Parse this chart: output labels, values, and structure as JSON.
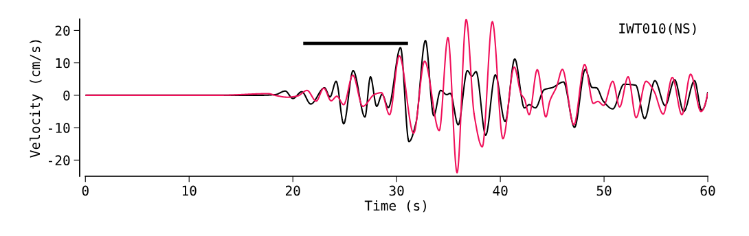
{
  "chart_data": {
    "type": "line",
    "xlabel": "Time (s)",
    "ylabel": "Velocity (cm/s)",
    "annotations": [
      "IWT010(NS)"
    ],
    "xlim": [
      0,
      60
    ],
    "xticks": [
      0,
      10,
      20,
      30,
      40,
      50,
      60
    ],
    "ylim": [
      -25,
      23.5
    ],
    "yticks": [
      -20,
      -10,
      0,
      10,
      20
    ],
    "grid": false,
    "legend": false,
    "series": [
      {
        "color": "#000000",
        "x": [
          0,
          13,
          17,
          18.3,
          19.27,
          20.0,
          20.86,
          21.72,
          23.05,
          23.58,
          24.17,
          24.9,
          25.81,
          26.95,
          27.48,
          28.08,
          28.6,
          29.2,
          30.38,
          31.19,
          31.85,
          32.78,
          33.58,
          34.24,
          34.83,
          35.17,
          35.94,
          36.82,
          37.26,
          37.66,
          38.59,
          39.52,
          40.46,
          41.39,
          42.32,
          42.78,
          43.38,
          44.22,
          45.03,
          46.09,
          47.15,
          48.19,
          48.85,
          49.27,
          49.93,
          50.84,
          51.92,
          53.05,
          53.91,
          54.9,
          55.89,
          56.8,
          57.68,
          58.72,
          59.4,
          60
        ],
        "values": [
          0,
          0,
          0,
          0.2,
          1.3,
          -1.0,
          1.1,
          -2.7,
          2.3,
          -0.5,
          4.3,
          -8.8,
          7.6,
          -6.7,
          5.7,
          -3.4,
          0.3,
          -3.8,
          14.7,
          -14.3,
          -8.8,
          16.9,
          -6.3,
          1.5,
          0.2,
          0.6,
          -9.1,
          7.6,
          5.9,
          7.3,
          -12.3,
          6.3,
          -8.1,
          11.2,
          -3.9,
          -2.9,
          -3.9,
          1.7,
          2.4,
          4.1,
          -9.9,
          8.0,
          2.4,
          2.3,
          -1.8,
          -4.2,
          3.4,
          3.1,
          -7.2,
          4.5,
          -3.2,
          4.8,
          -5.0,
          4.5,
          -4.6,
          1.0
        ]
      },
      {
        "color": "#f0105a",
        "x": [
          0,
          13,
          17.62,
          18.39,
          19.47,
          20.46,
          21.37,
          22.25,
          22.98,
          23.69,
          24.24,
          24.9,
          25.78,
          26.74,
          27.88,
          28.54,
          29.32,
          30.26,
          31.64,
          32.7,
          34.11,
          34.95,
          35.83,
          36.71,
          37.48,
          38.26,
          39.23,
          40.25,
          41.34,
          42.01,
          42.32,
          42.78,
          43.56,
          44.39,
          44.77,
          45.43,
          45.98,
          47.09,
          48.13,
          48.96,
          49.4,
          49.95,
          50.84,
          51.5,
          52.32,
          53.09,
          54.04,
          54.81,
          55.7,
          56.58,
          57.5,
          58.34,
          59.34,
          60
        ],
        "values": [
          0,
          0,
          0.5,
          -0.1,
          -0.6,
          -0.2,
          1.5,
          -1.8,
          2.2,
          -1.7,
          -0.3,
          -2.9,
          6.2,
          -3.4,
          0.3,
          0.8,
          -6.0,
          12.2,
          -11.7,
          10.5,
          -10.9,
          17.8,
          -23.9,
          23.4,
          -6.0,
          -15.9,
          22.7,
          -13.4,
          8.7,
          0.3,
          -1.1,
          -6.0,
          7.9,
          -6.7,
          -1.8,
          2.7,
          8.0,
          -9.1,
          9.5,
          -2.5,
          -1.9,
          -3.1,
          4.3,
          -3.6,
          5.7,
          -6.9,
          4.3,
          1.3,
          -5.8,
          5.5,
          -6.0,
          6.5,
          -5.0,
          0.8
        ]
      },
      {
        "color": "#000000",
        "x": [
          21.0,
          31.1
        ],
        "values": [
          16,
          16
        ]
      }
    ]
  }
}
